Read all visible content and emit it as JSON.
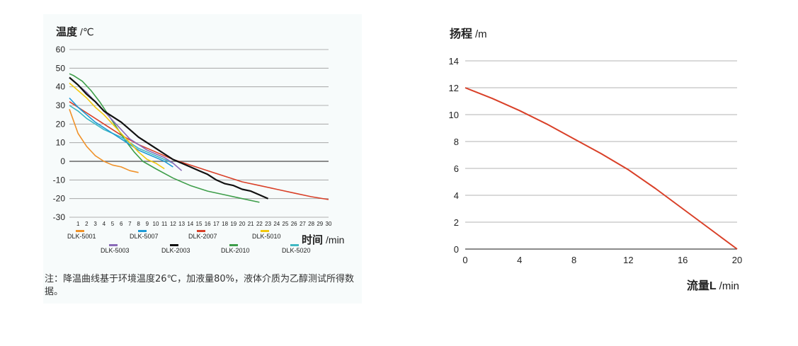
{
  "chart_data": [
    {
      "type": "line",
      "ylabel": "温度",
      "yunit": "/℃",
      "xlabel": "时间",
      "xunit": "/min",
      "ylim": [
        -30,
        60
      ],
      "yticks": [
        60,
        50,
        40,
        30,
        20,
        10,
        0,
        -10,
        -20,
        -30
      ],
      "xlim": [
        0,
        30
      ],
      "xticks": [
        1,
        2,
        3,
        4,
        5,
        6,
        7,
        8,
        9,
        10,
        11,
        12,
        13,
        14,
        15,
        16,
        17,
        18,
        19,
        20,
        21,
        22,
        23,
        24,
        25,
        26,
        27,
        28,
        29,
        30
      ],
      "grid": true,
      "legend_position": "bottom",
      "series": [
        {
          "name": "DLK-5001",
          "color": "#f0922a",
          "x": [
            0,
            1,
            2,
            3,
            4,
            5,
            6,
            7,
            8
          ],
          "y": [
            28,
            15,
            8,
            3,
            0,
            -2,
            -3,
            -5,
            -6
          ]
        },
        {
          "name": "DLK-5003",
          "color": "#8a6bb8",
          "x": [
            0,
            1,
            2,
            3,
            4,
            5,
            6,
            7,
            8,
            9,
            10,
            11,
            12,
            13
          ],
          "y": [
            45,
            41,
            37,
            32,
            27,
            22,
            17,
            12,
            9,
            6,
            4,
            2,
            -1,
            -5
          ]
        },
        {
          "name": "DLK-5007",
          "color": "#1e9ad6",
          "x": [
            0,
            1,
            2,
            3,
            4,
            5,
            6,
            7,
            8,
            9,
            10,
            11,
            12
          ],
          "y": [
            34,
            29,
            25,
            21,
            18,
            15,
            12,
            9,
            6,
            4,
            2,
            0,
            -3
          ]
        },
        {
          "name": "DLK-2003",
          "color": "#111111",
          "x": [
            0,
            1,
            2,
            3,
            4,
            5,
            6,
            7,
            8,
            9,
            10,
            11,
            12,
            13,
            14,
            15,
            16,
            17,
            18,
            19,
            20,
            21,
            22,
            23
          ],
          "y": [
            45,
            41,
            36,
            32,
            27,
            24,
            21,
            17,
            13,
            10,
            7,
            4,
            1,
            -1,
            -3,
            -5,
            -7,
            -10,
            -12,
            -13,
            -15,
            -16,
            -18,
            -20
          ]
        },
        {
          "name": "DLK-2007",
          "color": "#d94028",
          "x": [
            0,
            2,
            4,
            6,
            8,
            10,
            12,
            14,
            16,
            18,
            20,
            22,
            24,
            26,
            28,
            30
          ],
          "y": [
            32,
            26,
            20,
            14,
            9,
            5,
            1,
            -2,
            -5,
            -8,
            -11,
            -13,
            -15,
            -17,
            -19,
            -20.5
          ]
        },
        {
          "name": "DLK-2010",
          "color": "#3e9e4a",
          "x": [
            0,
            0.5,
            1.5,
            2.5,
            3.5,
            4.5,
            5.5,
            6.5,
            7.5,
            8.5,
            10,
            12,
            14,
            16,
            18,
            20,
            22
          ],
          "y": [
            47,
            46,
            43,
            38,
            32,
            25,
            18,
            11,
            5,
            0,
            -4,
            -9,
            -13,
            -16,
            -18,
            -20,
            -22
          ]
        },
        {
          "name": "DLK-5010",
          "color": "#f2c80f",
          "x": [
            0,
            1,
            2,
            3,
            4,
            5,
            6,
            7,
            8,
            9,
            10,
            11
          ],
          "y": [
            42,
            38,
            34,
            29,
            25,
            20,
            15,
            10,
            5,
            1,
            -1,
            -4
          ]
        },
        {
          "name": "DLK-5020",
          "color": "#3fb8c2",
          "x": [
            0,
            1,
            2,
            3,
            4,
            5,
            6,
            7,
            8,
            9,
            10,
            11,
            12
          ],
          "y": [
            30,
            27,
            23,
            20,
            17,
            15,
            13,
            10,
            7,
            5,
            3,
            1,
            -1
          ]
        }
      ]
    },
    {
      "type": "line",
      "ylabel": "扬程",
      "yunit": "/m",
      "xlabel": "流量L",
      "xunit": "/min",
      "ylim": [
        0,
        14
      ],
      "yticks": [
        14,
        12,
        10,
        8,
        6,
        4,
        2,
        0
      ],
      "xlim": [
        0,
        20
      ],
      "xticks": [
        0,
        4,
        8,
        12,
        16,
        20
      ],
      "grid": true,
      "series": [
        {
          "name": "",
          "color": "#d94028",
          "x": [
            0,
            2,
            4,
            6,
            8,
            10,
            12,
            14,
            16,
            18,
            20
          ],
          "y": [
            12,
            11.2,
            10.3,
            9.3,
            8.2,
            7.1,
            5.9,
            4.5,
            3.0,
            1.5,
            0
          ]
        }
      ]
    }
  ],
  "note": "注：降温曲线基于环境温度26℃，加液量80%，液体介质为乙醇测试所得数据。"
}
